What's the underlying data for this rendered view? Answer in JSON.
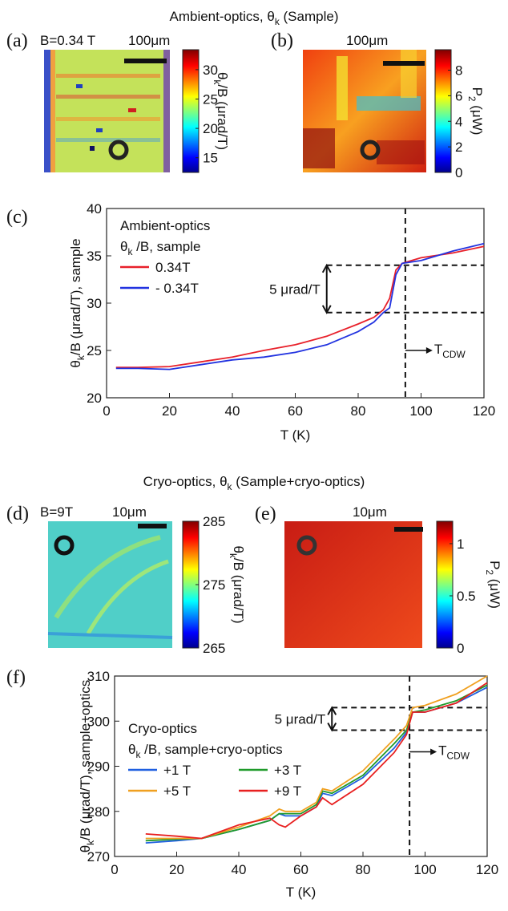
{
  "section_titles": [
    {
      "main": "Ambient-optics, θ",
      "sub": "k",
      "rest": " (Sample)"
    },
    {
      "main": "Cryo-optics, θ",
      "sub": "k",
      "rest": " (Sample+cryo-optics)"
    }
  ],
  "chart_data": [
    {
      "type": "heatmap",
      "panel_label": "(a)",
      "field": "B=0.34 T",
      "scale_bar": "100μm",
      "colorbar_label": {
        "main": "θ",
        "sub": "k",
        "rest": "/B (μrad/T)"
      },
      "clim": [
        12.5,
        33.4
      ],
      "cticks": [
        15,
        20,
        25,
        30
      ]
    },
    {
      "type": "heatmap",
      "panel_label": "(b)",
      "scale_bar": "100μm",
      "colorbar_label": {
        "main": "P",
        "sub": "2",
        "rest": " (μW)"
      },
      "clim": [
        0,
        9.6
      ],
      "cticks": [
        0,
        2,
        4,
        6,
        8
      ]
    },
    {
      "type": "line",
      "panel_label": "(c)",
      "xlabel": "T (K)",
      "ylabel": {
        "main": "θ",
        "sub": "k",
        "rest": "/B (μrad/T), sample"
      },
      "legend_title": [
        "Ambient-optics",
        {
          "main": "θ",
          "sub": "k",
          "rest": " /B, sample"
        }
      ],
      "x": [
        3,
        10,
        20,
        30,
        40,
        50,
        60,
        70,
        80,
        85,
        88,
        90,
        92,
        94,
        100,
        110,
        120
      ],
      "series": [
        {
          "name": "0.34T",
          "color": "#e8202a",
          "values": [
            23.2,
            23.2,
            23.3,
            23.8,
            24.3,
            25,
            25.6,
            26.5,
            27.8,
            28.5,
            29.3,
            30.5,
            33.5,
            34.2,
            34.8,
            35.3,
            36.0
          ]
        },
        {
          "name": "- 0.34T",
          "color": "#2233e0",
          "values": [
            23.1,
            23.1,
            23.0,
            23.5,
            24,
            24.3,
            24.8,
            25.6,
            27,
            28,
            29,
            29.5,
            33.0,
            34.2,
            34.5,
            35.5,
            36.3
          ]
        }
      ],
      "xlim": [
        0,
        120
      ],
      "xticks": [
        0,
        20,
        40,
        60,
        80,
        100,
        120
      ],
      "ylim": [
        20,
        40
      ],
      "yticks": [
        20,
        25,
        30,
        35,
        40
      ],
      "step_lines": [
        29,
        34
      ],
      "transition_line": 95,
      "step_label": "5 μrad/T",
      "transition_label": {
        "main": "T",
        "sub": "CDW"
      }
    },
    {
      "type": "heatmap",
      "panel_label": "(d)",
      "field": "B=9T",
      "scale_bar": "10μm",
      "colorbar_label": {
        "main": "θ",
        "sub": "k",
        "rest": "/B (μrad/T)"
      },
      "clim": [
        265,
        285
      ],
      "cticks": [
        265,
        275,
        285
      ]
    },
    {
      "type": "heatmap",
      "panel_label": "(e)",
      "scale_bar": "10μm",
      "colorbar_label": {
        "main": "P",
        "sub": "2",
        "rest": " (μW)"
      },
      "clim": [
        0,
        1.215
      ],
      "cticks": [
        0,
        0.5,
        1
      ]
    },
    {
      "type": "line",
      "panel_label": "(f)",
      "xlabel": "T (K)",
      "ylabel": {
        "main": "θ",
        "sub": "k",
        "rest": "/B (μrad/T), sample+optics"
      },
      "legend_title": [
        "Cryo-optics",
        {
          "main": "θ",
          "sub": "k",
          "rest": " /B, sample+cryo-optics"
        }
      ],
      "x": [
        10,
        20,
        28,
        40,
        50,
        53,
        55,
        60,
        65,
        67,
        70,
        80,
        90,
        94,
        96,
        100,
        110,
        120
      ],
      "series": [
        {
          "name": "+1 T",
          "color": "#1f5fe0",
          "values": [
            273,
            273.5,
            274,
            276,
            278,
            279.5,
            279,
            279,
            281,
            284,
            283.5,
            287.5,
            294,
            297.5,
            302,
            302,
            304,
            307.5
          ]
        },
        {
          "name": "+3 T",
          "color": "#1f9a2a",
          "values": [
            273.5,
            273.8,
            274,
            276,
            278,
            279.5,
            279.5,
            279.5,
            281.5,
            284.5,
            284,
            288,
            295,
            298,
            302,
            302.5,
            304.5,
            308
          ]
        },
        {
          "name": "+5 T",
          "color": "#f0a020",
          "values": [
            274,
            274,
            274,
            276.5,
            279,
            280.5,
            280,
            280,
            282,
            285,
            284.5,
            289,
            296,
            299,
            303,
            303.5,
            306,
            310
          ]
        },
        {
          "name": "+9 T",
          "color": "#e82020",
          "values": [
            275,
            274.5,
            274,
            277,
            278.5,
            277,
            276.5,
            279,
            281,
            283,
            281.5,
            286,
            293,
            297,
            302,
            302,
            304,
            308.5
          ]
        }
      ],
      "xlim": [
        0,
        120
      ],
      "xticks": [
        0,
        20,
        40,
        60,
        80,
        100,
        120
      ],
      "ylim": [
        270,
        310
      ],
      "yticks": [
        270,
        280,
        290,
        300,
        310
      ],
      "step_lines": [
        298,
        303
      ],
      "transition_line": 95,
      "step_label": "5 μrad/T",
      "transition_label": {
        "main": "T",
        "sub": "CDW"
      }
    }
  ]
}
